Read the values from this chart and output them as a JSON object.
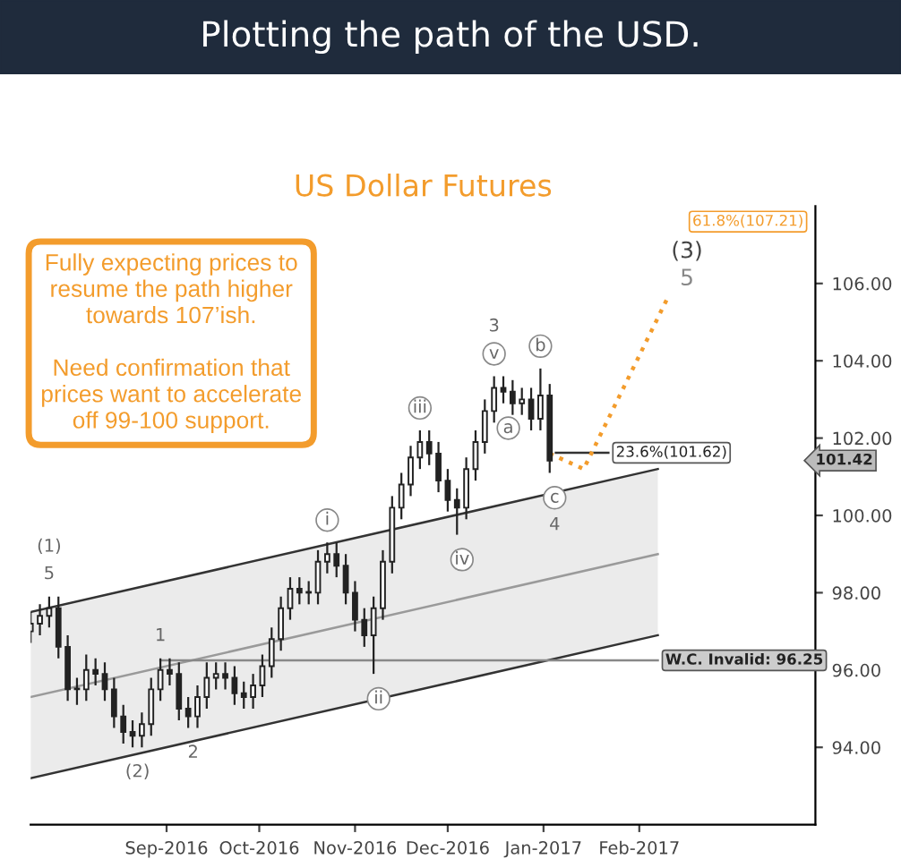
{
  "chart_data": {
    "type": "candlestick",
    "title": "Plotting the path of the USD.",
    "subtitle": "US Dollar Futures",
    "x": [
      "2016-07-19",
      "2016-07-22",
      "2016-07-25",
      "2016-07-28",
      "2016-07-31",
      "2016-08-03",
      "2016-08-06",
      "2016-08-09",
      "2016-08-12",
      "2016-08-15",
      "2016-08-18",
      "2016-08-21",
      "2016-08-24",
      "2016-08-27",
      "2016-08-30",
      "2016-09-02",
      "2016-09-05",
      "2016-09-08",
      "2016-09-11",
      "2016-09-14",
      "2016-09-17",
      "2016-09-20",
      "2016-09-23",
      "2016-09-26",
      "2016-09-29",
      "2016-10-02",
      "2016-10-05",
      "2016-10-08",
      "2016-10-11",
      "2016-10-14",
      "2016-10-17",
      "2016-10-20",
      "2016-10-23",
      "2016-10-26",
      "2016-10-29",
      "2016-11-01",
      "2016-11-04",
      "2016-11-07",
      "2016-11-10",
      "2016-11-13",
      "2016-11-16",
      "2016-11-19",
      "2016-11-22",
      "2016-11-25",
      "2016-11-28",
      "2016-12-01",
      "2016-12-04",
      "2016-12-07",
      "2016-12-10",
      "2016-12-13",
      "2016-12-16",
      "2016-12-19",
      "2016-12-22",
      "2016-12-25",
      "2016-12-28",
      "2016-12-31",
      "2017-01-03"
    ],
    "ohlc": [
      [
        97.0,
        97.5,
        96.7,
        97.2
      ],
      [
        97.2,
        97.7,
        96.9,
        97.4
      ],
      [
        97.4,
        97.9,
        97.1,
        97.6
      ],
      [
        97.6,
        97.9,
        96.3,
        96.6
      ],
      [
        96.6,
        96.9,
        95.2,
        95.5
      ],
      [
        95.5,
        95.8,
        95.1,
        95.5
      ],
      [
        95.5,
        96.4,
        95.2,
        96.0
      ],
      [
        96.0,
        96.3,
        95.6,
        95.9
      ],
      [
        95.9,
        96.2,
        95.2,
        95.5
      ],
      [
        95.5,
        95.8,
        94.5,
        94.8
      ],
      [
        94.8,
        95.1,
        94.1,
        94.4
      ],
      [
        94.4,
        94.7,
        94.0,
        94.3
      ],
      [
        94.3,
        94.9,
        94.0,
        94.6
      ],
      [
        94.6,
        95.8,
        94.3,
        95.5
      ],
      [
        95.5,
        96.3,
        95.2,
        96.0
      ],
      [
        96.0,
        96.3,
        95.6,
        95.9
      ],
      [
        95.9,
        96.2,
        94.7,
        95.0
      ],
      [
        95.0,
        95.3,
        94.5,
        94.8
      ],
      [
        94.8,
        95.6,
        94.5,
        95.3
      ],
      [
        95.3,
        96.2,
        95.0,
        95.8
      ],
      [
        95.8,
        96.2,
        95.5,
        95.9
      ],
      [
        95.9,
        96.2,
        95.5,
        95.8
      ],
      [
        95.8,
        96.1,
        95.1,
        95.4
      ],
      [
        95.4,
        95.7,
        95.0,
        95.3
      ],
      [
        95.3,
        95.9,
        95.0,
        95.6
      ],
      [
        95.6,
        96.4,
        95.3,
        96.1
      ],
      [
        96.1,
        97.1,
        95.8,
        96.8
      ],
      [
        96.8,
        97.9,
        96.5,
        97.6
      ],
      [
        97.6,
        98.4,
        97.3,
        98.1
      ],
      [
        98.1,
        98.4,
        97.7,
        98.0
      ],
      [
        98.0,
        98.3,
        97.7,
        98.0
      ],
      [
        98.0,
        99.1,
        97.7,
        98.8
      ],
      [
        98.8,
        99.3,
        98.5,
        99.0
      ],
      [
        99.0,
        99.3,
        98.4,
        98.7
      ],
      [
        98.7,
        99.0,
        97.7,
        98.0
      ],
      [
        98.0,
        98.3,
        97.0,
        97.3
      ],
      [
        97.3,
        97.6,
        96.6,
        96.9
      ],
      [
        96.9,
        97.9,
        95.9,
        97.6
      ],
      [
        97.6,
        99.1,
        97.3,
        98.8
      ],
      [
        98.8,
        100.5,
        98.5,
        100.2
      ],
      [
        100.2,
        101.1,
        99.9,
        100.8
      ],
      [
        100.8,
        101.8,
        100.5,
        101.5
      ],
      [
        101.5,
        102.2,
        101.2,
        101.9
      ],
      [
        101.9,
        102.2,
        101.3,
        101.6
      ],
      [
        101.6,
        101.9,
        100.6,
        100.9
      ],
      [
        100.9,
        101.2,
        100.1,
        100.4
      ],
      [
        100.4,
        100.7,
        99.5,
        100.2
      ],
      [
        100.2,
        101.5,
        99.9,
        101.2
      ],
      [
        101.2,
        102.2,
        100.9,
        101.9
      ],
      [
        101.9,
        103.0,
        101.6,
        102.7
      ],
      [
        102.7,
        103.6,
        102.4,
        103.3
      ],
      [
        103.3,
        103.6,
        102.9,
        103.2
      ],
      [
        103.2,
        103.5,
        102.6,
        102.9
      ],
      [
        102.9,
        103.3,
        102.6,
        103.0
      ],
      [
        103.0,
        103.3,
        102.2,
        102.5
      ],
      [
        102.5,
        103.8,
        102.2,
        103.1
      ],
      [
        103.1,
        103.4,
        101.1,
        101.42
      ]
    ],
    "color": "#222222",
    "series": [
      {
        "type": "line",
        "x": [
          "2016-07-19",
          "2017-02-07"
        ],
        "values": [
          95.3,
          99.0
        ],
        "lower": [
          93.2,
          96.9
        ],
        "upper": [
          97.5,
          101.2
        ],
        "color": "#9a9a9a"
      },
      {
        "type": "line",
        "x": [
          "2016-07-19",
          "2017-02-07"
        ],
        "values": [
          97.5,
          101.2
        ],
        "color": "#333333"
      },
      {
        "type": "line",
        "x": [
          "2016-07-19",
          "2017-02-07"
        ],
        "values": [
          93.2,
          96.9
        ],
        "color": "#333333"
      },
      {
        "type": "line",
        "x": [
          "2016-08-30",
          "2017-02-07"
        ],
        "values": [
          96.25,
          96.25
        ],
        "color": "#888888"
      },
      {
        "type": "line",
        "x": [
          "2017-01-05",
          "2017-01-22"
        ],
        "values": [
          101.62,
          101.62
        ],
        "color": "#333333"
      },
      {
        "type": "line",
        "x": [
          "2017-01-03",
          "2017-01-14",
          "2017-02-10"
        ],
        "values": [
          101.6,
          101.2,
          105.6
        ],
        "color": "#f39c2c",
        "line_style": "dotted"
      }
    ],
    "xlim": [
      "2016-07-19",
      "2017-03-30"
    ],
    "xticks": [
      {
        "value": "2016-09-01",
        "label": "Sep-2016"
      },
      {
        "value": "2016-10-01",
        "label": "Oct-2016"
      },
      {
        "value": "2016-11-01",
        "label": "Nov-2016"
      },
      {
        "value": "2016-12-01",
        "label": "Dec-2016"
      },
      {
        "value": "2017-01-01",
        "label": "Jan-2017"
      },
      {
        "value": "2017-02-01",
        "label": "Feb-2017"
      }
    ],
    "ylim": [
      92,
      108
    ],
    "yticks": [
      {
        "value": 94,
        "label": "94.00"
      },
      {
        "value": 96,
        "label": "96.00"
      },
      {
        "value": 98,
        "label": "98.00"
      },
      {
        "value": 100,
        "label": "100.00"
      },
      {
        "value": 102,
        "label": "102.00"
      },
      {
        "value": 104,
        "label": "104.00"
      },
      {
        "value": 106,
        "label": "106.00"
      }
    ],
    "grid": false,
    "annotations": [
      "Fully expecting prices to\nresume the path higher\ntowards 107’ish.\n\nNeed confirmation that\nprices want to accelerate\noff 99-100 support.",
      {
        "text": "(1)",
        "x": "2016-07-25",
        "y": 97.9
      },
      {
        "text": "5",
        "x": "2016-07-25",
        "y": 97.9
      },
      {
        "text": "1",
        "x": "2016-08-30",
        "y": 96.3
      },
      {
        "text": "(2)",
        "x": "2016-08-21",
        "y": 94.0
      },
      {
        "text": "2",
        "x": "2016-09-08",
        "y": 94.5
      },
      {
        "text": "i",
        "x": "2016-10-23",
        "y": 99.3
      },
      {
        "text": "ii",
        "x": "2016-11-07",
        "y": 95.9
      },
      {
        "text": "iii",
        "x": "2016-11-22",
        "y": 102.2
      },
      {
        "text": "iv",
        "x": "2016-12-04",
        "y": 99.5
      },
      {
        "text": "3",
        "x": "2016-12-16",
        "y": 103.6
      },
      {
        "text": "v",
        "x": "2016-12-16",
        "y": 103.6
      },
      {
        "text": "a",
        "x": "2016-12-19",
        "y": 102.9
      },
      {
        "text": "b",
        "x": "2016-12-31",
        "y": 103.8
      },
      {
        "text": "c",
        "x": "2017-01-03",
        "y": 101.1
      },
      {
        "text": "4",
        "x": "2017-01-03",
        "y": 101.1
      },
      {
        "text": "(3)",
        "x": "2017-02-10",
        "y": 105.6
      },
      {
        "text": "5",
        "x": "2017-02-10",
        "y": 105.6
      },
      {
        "text": "W.C. Invalid: 96.25",
        "x": "2017-02-07",
        "y": 96.25
      },
      {
        "text": "23.6%(101.62)",
        "x": "2017-01-22",
        "y": 101.62
      },
      "61.8%(107.21)",
      "101.42"
    ]
  }
}
